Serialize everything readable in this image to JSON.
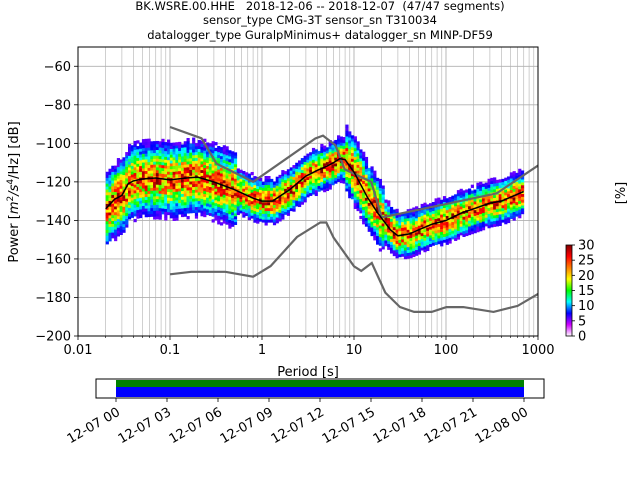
{
  "chart_data": {
    "type": "heatmap",
    "title_lines": [
      "BK.WSRE.00.HHE   2018-12-06 -- 2018-12-07  (47/47 segments)",
      "sensor_type CMG-3T sensor_sn T310034",
      "datalogger_type GuralpMinimus+ datalogger_sn MINP-DF59"
    ],
    "xlabel": "Period [s]",
    "ylabel_parts": [
      "Power [",
      "m",
      "2",
      "/s",
      "4",
      "/Hz] [dB]"
    ],
    "xscale": "log",
    "xlim": [
      0.01,
      1000
    ],
    "ylim": [
      -200,
      -50
    ],
    "x_ticks": [
      {
        "v": 0.01,
        "label": "0.01"
      },
      {
        "v": 0.1,
        "label": "0.1"
      },
      {
        "v": 1,
        "label": "1"
      },
      {
        "v": 10,
        "label": "10"
      },
      {
        "v": 100,
        "label": "100"
      },
      {
        "v": 1000,
        "label": "1000"
      }
    ],
    "y_ticks": [
      {
        "v": -60,
        "label": "−60"
      },
      {
        "v": -80,
        "label": "−80"
      },
      {
        "v": -100,
        "label": "−100"
      },
      {
        "v": -120,
        "label": "−120"
      },
      {
        "v": -140,
        "label": "−140"
      },
      {
        "v": -160,
        "label": "−160"
      },
      {
        "v": -180,
        "label": "−180"
      },
      {
        "v": -200,
        "label": "−200"
      }
    ],
    "grid": true,
    "colorbar": {
      "label": "[%]",
      "range": [
        0,
        30
      ],
      "ticks": [
        {
          "v": 0,
          "label": "0"
        },
        {
          "v": 5,
          "label": "5"
        },
        {
          "v": 10,
          "label": "10"
        },
        {
          "v": 15,
          "label": "15"
        },
        {
          "v": 20,
          "label": "20"
        },
        {
          "v": 25,
          "label": "25"
        },
        {
          "v": 30,
          "label": "30"
        }
      ],
      "colors": [
        "#ffffff",
        "#d000ff",
        "#0000ff",
        "#00ffff",
        "#00ff00",
        "#ffff00",
        "#ff7f00",
        "#ff0000",
        "#800000"
      ]
    },
    "nhnm": [
      [
        0.1,
        -91.5
      ],
      [
        0.22,
        -97.4
      ],
      [
        0.32,
        -110.5
      ],
      [
        0.8,
        -120
      ],
      [
        3.8,
        -97.5
      ],
      [
        4.6,
        -96
      ],
      [
        6.3,
        -101
      ],
      [
        7.9,
        -113.5
      ],
      [
        15.4,
        -120
      ],
      [
        20,
        -138.5
      ],
      [
        354.8,
        -126
      ],
      [
        1000,
        -111.5
      ]
    ],
    "nlnm": [
      [
        0.1,
        -168
      ],
      [
        0.17,
        -166.7
      ],
      [
        0.4,
        -166.7
      ],
      [
        0.8,
        -169.2
      ],
      [
        1.24,
        -163.7
      ],
      [
        2.4,
        -148.6
      ],
      [
        4.3,
        -141.1
      ],
      [
        5,
        -141.1
      ],
      [
        6,
        -149
      ],
      [
        10,
        -163.8
      ],
      [
        12,
        -166.2
      ],
      [
        15.6,
        -162.1
      ],
      [
        21.9,
        -177.5
      ],
      [
        31.6,
        -185
      ],
      [
        45,
        -187.5
      ],
      [
        70,
        -187.5
      ],
      [
        101,
        -185
      ],
      [
        154,
        -185
      ],
      [
        328,
        -187.5
      ],
      [
        600,
        -184.4
      ],
      [
        1000,
        -178.2
      ]
    ],
    "mode_line": [
      [
        0.02,
        -134
      ],
      [
        0.025,
        -129
      ],
      [
        0.03,
        -127
      ],
      [
        0.035,
        -121
      ],
      [
        0.04,
        -119.5
      ],
      [
        0.05,
        -118.5
      ],
      [
        0.07,
        -118
      ],
      [
        0.1,
        -119
      ],
      [
        0.15,
        -118
      ],
      [
        0.2,
        -117.5
      ],
      [
        0.3,
        -120
      ],
      [
        0.5,
        -124
      ],
      [
        0.8,
        -128.5
      ],
      [
        1,
        -130
      ],
      [
        1.3,
        -130
      ],
      [
        2,
        -124
      ],
      [
        3,
        -117
      ],
      [
        4,
        -114
      ],
      [
        5,
        -112
      ],
      [
        6,
        -110
      ],
      [
        7,
        -108
      ],
      [
        8,
        -108.5
      ],
      [
        10,
        -115
      ],
      [
        12,
        -122
      ],
      [
        14,
        -128
      ],
      [
        18,
        -136
      ],
      [
        25,
        -145
      ],
      [
        30,
        -148
      ],
      [
        40,
        -147
      ],
      [
        50,
        -145
      ],
      [
        70,
        -142
      ],
      [
        100,
        -140
      ],
      [
        150,
        -136
      ],
      [
        200,
        -134
      ],
      [
        300,
        -131
      ],
      [
        400,
        -130
      ],
      [
        500,
        -128
      ],
      [
        700,
        -125
      ]
    ],
    "time_axis": {
      "tick_labels": [
        "12-07 00",
        "12-07 03",
        "12-07 06",
        "12-07 09",
        "12-07 12",
        "12-07 15",
        "12-07 18",
        "12-07 21",
        "12-08 00"
      ],
      "bar_colors": [
        "#008000",
        "#0000ff"
      ]
    }
  }
}
